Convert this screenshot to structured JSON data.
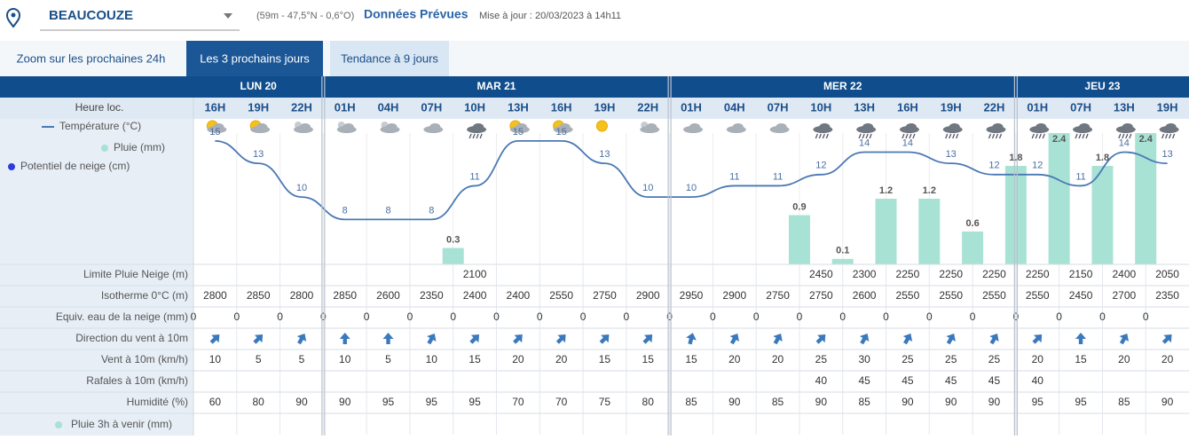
{
  "header": {
    "location": "BEAUCOUZE",
    "coordinates": "(59m - 47,5°N - 0,6°O)",
    "mode": "Données Prévues",
    "updated": "Mise à jour : 20/03/2023 à 14h11"
  },
  "tabs": [
    "Zoom sur les prochaines 24h",
    "Les 3 prochains jours",
    "Tendance à 9 jours"
  ],
  "active_tab": 1,
  "hours_label": "Heure loc.",
  "days": [
    {
      "label": "LUN 20",
      "hours": [
        "16H",
        "19H",
        "22H"
      ]
    },
    {
      "label": "MAR 21",
      "hours": [
        "01H",
        "04H",
        "07H",
        "10H",
        "13H",
        "16H",
        "19H",
        "22H"
      ]
    },
    {
      "label": "MER 22",
      "hours": [
        "01H",
        "04H",
        "07H",
        "10H",
        "13H",
        "16H",
        "19H",
        "22H"
      ]
    },
    {
      "label": "JEU 23",
      "hours": [
        "01H",
        "07H",
        "13H",
        "19H"
      ]
    }
  ],
  "chart_data": {
    "type": "line",
    "series": [
      {
        "name": "Température (°C)",
        "color": "#4a78b5",
        "values": [
          15,
          13,
          10,
          8,
          8,
          8,
          11,
          15,
          15,
          13,
          10,
          10,
          11,
          11,
          12,
          14,
          14,
          13,
          12,
          12,
          11,
          14,
          13
        ]
      },
      {
        "name": "Pluie (mm)",
        "color": "#a8e2d4",
        "type": "bar",
        "axis": "y2",
        "values": [
          null,
          null,
          null,
          null,
          null,
          null,
          0.3,
          null,
          null,
          null,
          null,
          null,
          null,
          null,
          0.9,
          0.1,
          1.2,
          1.2,
          0.6,
          1.8,
          2.4,
          1.8,
          2.4
        ]
      },
      {
        "name": "Potentiel de neige (cm)",
        "color": "#2d3be0"
      }
    ],
    "ylim": [
      4,
      15.7
    ],
    "y2lim": [
      0,
      2.4
    ]
  },
  "table": {
    "rows": [
      {
        "label": "Limite Pluie Neige (m)",
        "values": [
          null,
          null,
          null,
          null,
          null,
          null,
          2100,
          null,
          null,
          null,
          null,
          null,
          null,
          null,
          2450,
          2300,
          2250,
          2250,
          2250,
          2250,
          2150,
          2400,
          2050
        ]
      },
      {
        "label": "Isotherme 0°C (m)",
        "values": [
          2800,
          2850,
          2800,
          2850,
          2600,
          2350,
          2400,
          2400,
          2550,
          2750,
          2900,
          2950,
          2900,
          2750,
          2750,
          2600,
          2550,
          2550,
          2550,
          2550,
          2450,
          2700,
          2350
        ]
      },
      {
        "label": "Equiv. eau de la neige (mm)",
        "values": [
          0,
          0,
          0,
          0,
          0,
          0,
          0,
          0,
          0,
          0,
          0,
          0,
          0,
          0,
          0,
          0,
          0,
          0,
          0,
          0,
          0,
          0,
          0
        ]
      },
      {
        "label": "Direction du vent à 10m",
        "values": [
          45,
          45,
          30,
          0,
          0,
          30,
          45,
          45,
          45,
          45,
          45,
          15,
          30,
          30,
          45,
          30,
          30,
          30,
          30,
          45,
          0,
          30,
          45
        ]
      },
      {
        "label": "Vent à 10m (km/h)",
        "values": [
          10,
          5,
          5,
          10,
          5,
          10,
          15,
          20,
          20,
          15,
          15,
          15,
          20,
          20,
          25,
          30,
          25,
          25,
          25,
          20,
          15,
          20,
          20
        ]
      },
      {
        "label": "Rafales à 10m (km/h)",
        "values": [
          null,
          null,
          null,
          null,
          null,
          null,
          null,
          null,
          null,
          null,
          null,
          null,
          null,
          null,
          40,
          45,
          45,
          45,
          45,
          40,
          null,
          null,
          null
        ]
      },
      {
        "label": "Humidité (%)",
        "values": [
          60,
          80,
          90,
          90,
          95,
          95,
          95,
          70,
          70,
          75,
          80,
          85,
          90,
          85,
          90,
          85,
          90,
          90,
          90,
          95,
          95,
          85,
          90
        ]
      },
      {
        "label": "Pluie 3h à venir (mm)"
      }
    ]
  }
}
